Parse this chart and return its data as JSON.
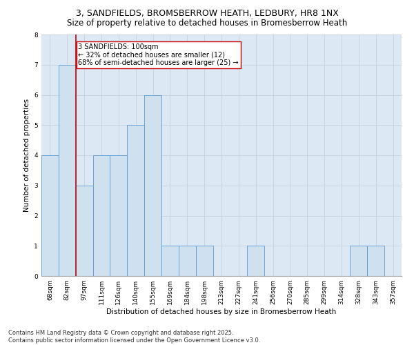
{
  "title1": "3, SANDFIELDS, BROMSBERROW HEATH, LEDBURY, HR8 1NX",
  "title2": "Size of property relative to detached houses in Bromesberrow Heath",
  "xlabel": "Distribution of detached houses by size in Bromesberrow Heath",
  "ylabel": "Number of detached properties",
  "categories": [
    "68sqm",
    "82sqm",
    "97sqm",
    "111sqm",
    "126sqm",
    "140sqm",
    "155sqm",
    "169sqm",
    "184sqm",
    "198sqm",
    "213sqm",
    "227sqm",
    "241sqm",
    "256sqm",
    "270sqm",
    "285sqm",
    "299sqm",
    "314sqm",
    "328sqm",
    "343sqm",
    "357sqm"
  ],
  "values": [
    4,
    7,
    3,
    4,
    4,
    5,
    6,
    1,
    1,
    1,
    0,
    0,
    1,
    0,
    0,
    0,
    0,
    0,
    1,
    1,
    0
  ],
  "bar_color": "#cfe0ee",
  "bar_edgecolor": "#5b9bd5",
  "grid_color": "#c8d4df",
  "background_color": "#dce9f5",
  "vline_color": "#cc0000",
  "vline_index": 1.5,
  "annotation_text": "3 SANDFIELDS: 100sqm\n← 32% of detached houses are smaller (12)\n68% of semi-detached houses are larger (25) →",
  "ylim": [
    0,
    8
  ],
  "yticks": [
    0,
    1,
    2,
    3,
    4,
    5,
    6,
    7,
    8
  ],
  "footnote": "Contains HM Land Registry data © Crown copyright and database right 2025.\nContains public sector information licensed under the Open Government Licence v3.0.",
  "title1_fontsize": 9,
  "title2_fontsize": 8.5,
  "ylabel_fontsize": 7.5,
  "xlabel_fontsize": 7.5,
  "tick_fontsize": 6.5,
  "annotation_fontsize": 7,
  "footnote_fontsize": 6
}
